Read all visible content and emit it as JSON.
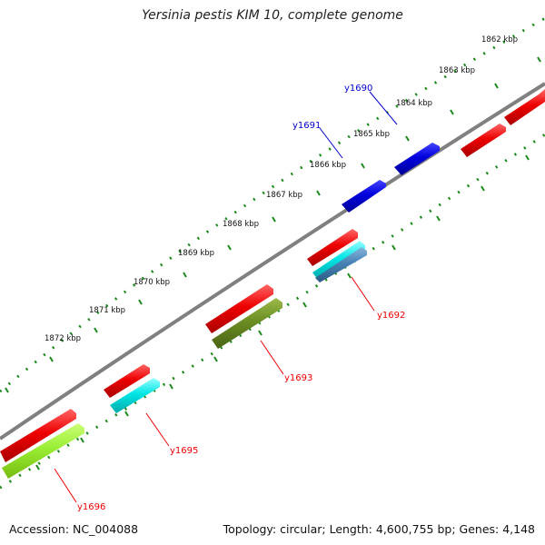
{
  "title": "Yersinia pestis KIM 10, complete genome",
  "footer": {
    "accession": "Accession: NC_004088",
    "summary": "Topology: circular; Length: 4,600,755 bp; Genes: 4,148"
  },
  "scale_ticks": [
    "1862 kbp",
    "1863 kbp",
    "1864 kbp",
    "1865 kbp",
    "1866 kbp",
    "1867 kbp",
    "1868 kbp",
    "1869 kbp",
    "1870 kbp",
    "1871 kbp",
    "1872 kbp"
  ],
  "gene_labels": {
    "y1690": "y1690",
    "y1691": "y1691",
    "y1692": "y1692",
    "y1693": "y1693",
    "y1695": "y1695",
    "y1696": "y1696"
  },
  "colors": {
    "backbone": "#808080",
    "dots": "#1a8a1a",
    "blue_gene": "#0000cc",
    "red_gene": "#ee0000",
    "cyan_gene": "#00dddd",
    "olive_gene": "#6b8e23",
    "lime_gene": "#99ee33",
    "steel_gene": "#4682b4"
  }
}
